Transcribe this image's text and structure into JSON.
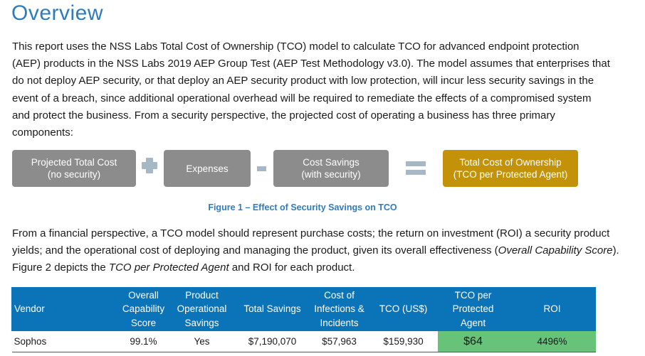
{
  "heading": "Overview",
  "paragraph1": "This report uses the NSS Labs Total Cost of Ownership (TCO) model to calculate TCO for advanced endpoint protection (AEP) products in the NSS Labs 2019 AEP Group Test (AEP Test Methodology v3.0). The model assumes that enterprises that do not deploy AEP security, or that deploy an AEP security product with low protection, will incur less security savings in the event of a breach, since additional operational overhead will be required to remediate the effects of a compromised system and protect the business. From a security perspective, the projected cost of operating a business has three primary components:",
  "diagram": {
    "box1_line1": "Projected Total Cost",
    "box1_line2": "(no security)",
    "box2": "Expenses",
    "box3_line1": "Cost Savings",
    "box3_line2": "(with security)",
    "box4_line1": "Total Cost of Ownership",
    "box4_line2": "(TCO per Protected Agent)",
    "colors": {
      "gray": "#8c8c8c",
      "gold": "#c39208",
      "operator": "#a6b8c6"
    }
  },
  "caption": "Figure 1  – Effect of Security Savings on TCO",
  "paragraph2": {
    "part1": "From a financial perspective, a TCO model should represent purchase costs; the return on investment (ROI) a security product yields; and the operational cost of deploying and managing the product, given its overall effectiveness (",
    "italic1": "Overall Capability Score",
    "part2": "). Figure 2 depicts the ",
    "italic2": "TCO per Protected Agent",
    "part3": " and ROI for each product."
  },
  "table": {
    "headers": {
      "vendor": "Vendor",
      "capability": [
        "Overall",
        "Capability",
        "Score"
      ],
      "operational": [
        "Product",
        "Operational",
        "Savings"
      ],
      "total_savings": "Total Savings",
      "infections": [
        "Cost of",
        "Infections &",
        "Incidents"
      ],
      "tco": "TCO (US$)",
      "tco_agent": [
        "TCO per",
        "Protected",
        "Agent"
      ],
      "roi": "ROI"
    },
    "row": {
      "vendor": "Sophos",
      "capability": "99.1%",
      "operational": "Yes",
      "total_savings": "$7,190,070",
      "infections": "$57,963",
      "tco": "$159,930",
      "tco_agent": "$64",
      "roi": "4496%"
    },
    "colors": {
      "header": "#0b74b8",
      "highlight": "#67c27a"
    }
  }
}
